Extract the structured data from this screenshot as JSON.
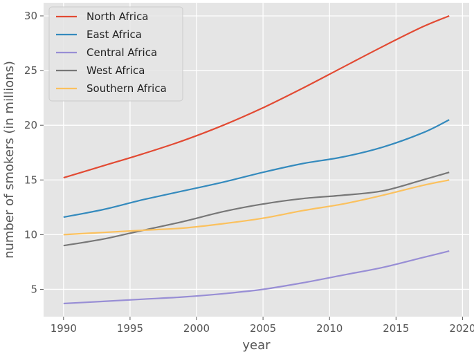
{
  "chart_data": {
    "type": "line",
    "title": "",
    "xlabel": "year",
    "ylabel": "number of smokers (in millions)",
    "xlim": [
      1988.5,
      2020.5
    ],
    "ylim": [
      2.5,
      31.2
    ],
    "grid": true,
    "legend_position": "top-left",
    "xticks": [
      1990,
      1995,
      2000,
      2005,
      2010,
      2015,
      2020
    ],
    "yticks": [
      5,
      10,
      15,
      20,
      25,
      30
    ],
    "x": [
      1990,
      1993,
      1996,
      1999,
      2002,
      2005,
      2008,
      2011,
      2014,
      2017,
      2019
    ],
    "series": [
      {
        "name": "North Africa",
        "color": "#E24A33",
        "values": [
          15.2,
          16.3,
          17.4,
          18.6,
          20.0,
          21.6,
          23.4,
          25.3,
          27.2,
          29.0,
          30.0
        ]
      },
      {
        "name": "East Africa",
        "color": "#348ABD",
        "values": [
          11.6,
          12.3,
          13.2,
          14.0,
          14.8,
          15.7,
          16.5,
          17.1,
          18.0,
          19.3,
          20.5
        ]
      },
      {
        "name": "Central Africa",
        "color": "#988ED5",
        "values": [
          3.7,
          3.9,
          4.1,
          4.3,
          4.6,
          5.0,
          5.6,
          6.3,
          7.0,
          7.9,
          8.5
        ]
      },
      {
        "name": "West Africa",
        "color": "#777777",
        "values": [
          9.0,
          9.6,
          10.4,
          11.2,
          12.1,
          12.8,
          13.3,
          13.6,
          14.0,
          15.0,
          15.7
        ]
      },
      {
        "name": "Southern Africa",
        "color": "#FBC15E",
        "values": [
          10.0,
          10.2,
          10.4,
          10.6,
          11.0,
          11.5,
          12.2,
          12.8,
          13.6,
          14.5,
          15.0
        ]
      }
    ]
  }
}
